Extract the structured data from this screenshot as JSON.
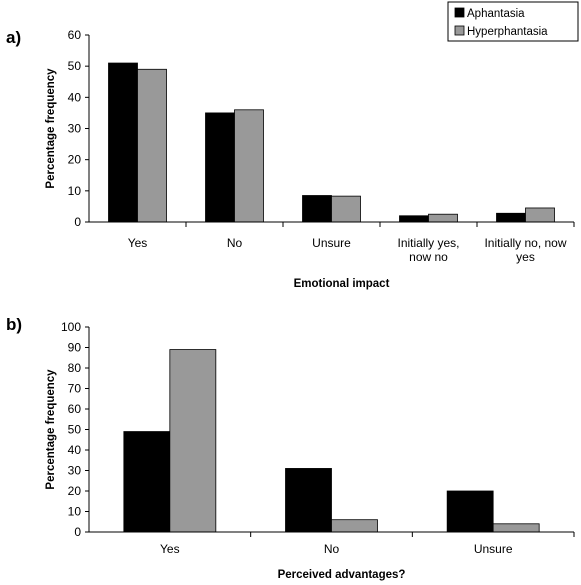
{
  "legend": {
    "entries": [
      {
        "label": "Aphantasia",
        "color": "#000000"
      },
      {
        "label": "Hyperphantasia",
        "color": "#999999"
      }
    ]
  },
  "chart_data": [
    {
      "type": "bar",
      "panel_label": "a)",
      "categories": [
        "Yes",
        "No",
        "Unsure",
        "Initially yes, now no",
        "Initially no, now yes"
      ],
      "category_lines": [
        [
          "Yes"
        ],
        [
          "No"
        ],
        [
          "Unsure"
        ],
        [
          "Initially yes,",
          "now no"
        ],
        [
          "Initially no, now",
          "yes"
        ]
      ],
      "series": [
        {
          "name": "Aphantasia",
          "color": "#000000",
          "values": [
            51,
            35,
            8.5,
            2,
            2.8
          ]
        },
        {
          "name": "Hyperphantasia",
          "color": "#999999",
          "values": [
            49,
            36,
            8.3,
            2.5,
            4.5
          ]
        }
      ],
      "xlabel": "Emotional impact",
      "ylabel": "Percentage frequency",
      "ylim": [
        0,
        60
      ],
      "yticks": [
        0,
        10,
        20,
        30,
        40,
        50,
        60
      ],
      "grid": false,
      "legend_position": "top-right"
    },
    {
      "type": "bar",
      "panel_label": "b)",
      "categories": [
        "Yes",
        "No",
        "Unsure"
      ],
      "category_lines": [
        [
          "Yes"
        ],
        [
          "No"
        ],
        [
          "Unsure"
        ]
      ],
      "series": [
        {
          "name": "Aphantasia",
          "color": "#000000",
          "values": [
            49,
            31,
            20
          ]
        },
        {
          "name": "Hyperphantasia",
          "color": "#999999",
          "values": [
            89,
            6,
            4
          ]
        }
      ],
      "xlabel": "Perceived advantages?",
      "ylabel": "Percentage frequency",
      "ylim": [
        0,
        100
      ],
      "yticks": [
        0,
        10,
        20,
        30,
        40,
        50,
        60,
        70,
        80,
        90,
        100
      ],
      "grid": false
    }
  ]
}
